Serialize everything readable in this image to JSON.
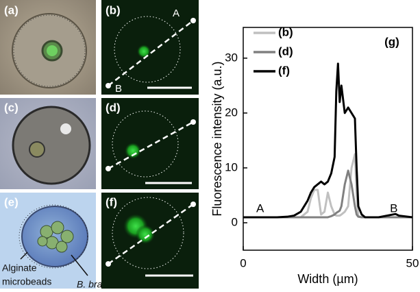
{
  "panels": [
    "(a)",
    "(b)",
    "(c)",
    "(d)",
    "(e)",
    "(f)"
  ],
  "panel_b_endpoints": [
    "A",
    "B"
  ],
  "panel_e_annotations": [
    "Alginate",
    "microbeads",
    "B. braunii"
  ],
  "chart_data": {
    "type": "line",
    "panel_label": "(g)",
    "x_label": "Width (µm)",
    "y_label": "Fluorescence intensity (a.u.)",
    "annotations": [
      {
        "text": "A",
        "x": 5,
        "y": 2.5
      },
      {
        "text": "B",
        "x": 44.5,
        "y": 2.5
      }
    ],
    "x": [
      0,
      5,
      10,
      13,
      15,
      17,
      19,
      20,
      21,
      22,
      23,
      24,
      25,
      26,
      27,
      27.5,
      28,
      28.5,
      29,
      30,
      31,
      32,
      33,
      33.5,
      34,
      35,
      36,
      40,
      45,
      46,
      50
    ],
    "series": [
      {
        "name": "(b)",
        "color": "#c0c0c0",
        "values": [
          1,
          1,
          1,
          1,
          1,
          1,
          2,
          4.5,
          6,
          6,
          1.5,
          2,
          5.5,
          3,
          1.5,
          1.3,
          1.3,
          1.3,
          1.5,
          2,
          3,
          10,
          12.5,
          5,
          1.2,
          1,
          1,
          1,
          1,
          1,
          1
        ]
      },
      {
        "name": "(d)",
        "color": "#808080",
        "values": [
          1,
          1,
          1,
          1,
          1,
          1,
          1,
          1,
          1,
          1,
          1,
          1,
          1,
          1.2,
          1.5,
          1.8,
          2,
          2.2,
          3,
          7,
          9.5,
          7,
          3,
          1.5,
          1.1,
          1,
          1,
          1,
          1,
          1,
          1
        ]
      },
      {
        "name": "(f)",
        "color": "#000000",
        "values": [
          1,
          1,
          1,
          1.1,
          1.3,
          2,
          4,
          5.5,
          6.5,
          7,
          7.5,
          7,
          7.5,
          9,
          12,
          24,
          29,
          22,
          25,
          20,
          21,
          20,
          19,
          10,
          3,
          1.5,
          1,
          1,
          1.6,
          1.3,
          1
        ]
      }
    ],
    "xlim": [
      0,
      50
    ],
    "xticks": [
      0,
      50
    ],
    "ylim": [
      -5,
      35.6
    ],
    "yticks": [
      0,
      10,
      20,
      30
    ]
  }
}
